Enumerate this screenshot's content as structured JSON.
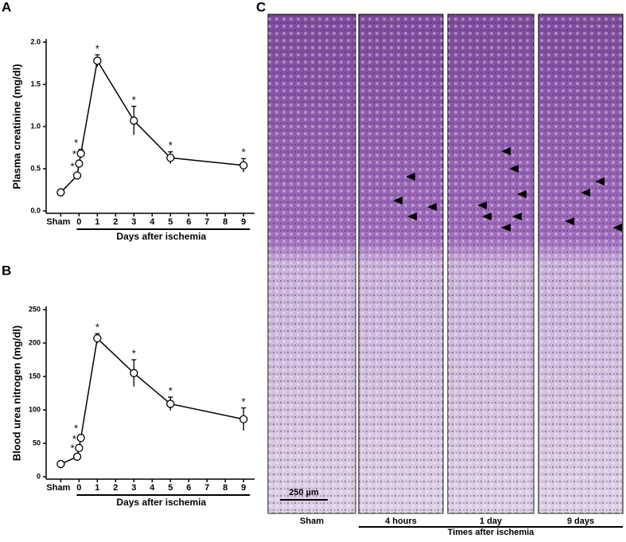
{
  "panel_labels": [
    "A",
    "B",
    "C"
  ],
  "chart_data": [
    {
      "type": "line",
      "ylabel": "Plasma creatinine (mg/dl)",
      "xlabel": "Days after ischemia",
      "x": [
        -1,
        -0.1,
        0,
        0.1,
        1,
        3,
        5,
        9
      ],
      "values": [
        0.22,
        0.42,
        0.56,
        0.68,
        1.78,
        1.07,
        0.63,
        0.54
      ],
      "errors": [
        0.03,
        0.03,
        0.04,
        0.05,
        0.07,
        0.17,
        0.07,
        0.08
      ],
      "significance": [
        null,
        "*",
        "*",
        "*",
        "*",
        "*",
        "*",
        "*"
      ],
      "color": "#000000",
      "xlim": [
        -1.8,
        9.6
      ],
      "ylim": [
        0,
        2
      ],
      "xticks": [
        {
          "value": -1,
          "label": "Sham"
        },
        0,
        1,
        2,
        3,
        4,
        5,
        6,
        7,
        8,
        9
      ],
      "yticks": [
        {
          "value": 0,
          "label": "0.0"
        },
        {
          "value": 0.5,
          "label": "0.5"
        },
        {
          "value": 1,
          "label": "1.0"
        },
        {
          "value": 1.5,
          "label": "1.5"
        },
        {
          "value": 2,
          "label": "2.0"
        }
      ]
    },
    {
      "type": "line",
      "ylabel": "Blood urea nitrogen (mg/dl)",
      "xlabel": "Days after ischemia",
      "x": [
        -1,
        -0.1,
        0,
        0.1,
        1,
        3,
        5,
        9
      ],
      "values": [
        19,
        30,
        43,
        58,
        207,
        155,
        109,
        86
      ],
      "errors": [
        2,
        3,
        4,
        5,
        7,
        20,
        10,
        17
      ],
      "significance": [
        null,
        "*",
        "*",
        "*",
        "*",
        "*",
        "*",
        "*"
      ],
      "color": "#000000",
      "xlim": [
        -1.8,
        9.6
      ],
      "ylim": [
        0,
        250
      ],
      "xticks": [
        {
          "value": -1,
          "label": "Sham"
        },
        0,
        1,
        2,
        3,
        4,
        5,
        6,
        7,
        8,
        9
      ],
      "yticks": [
        0,
        50,
        100,
        150,
        200,
        250
      ]
    }
  ],
  "micrographs": {
    "labels": [
      "Sham",
      "4 hours",
      "1 day",
      "9 days"
    ],
    "group_label": "Times after ischemia",
    "scale_bar": "250 µm"
  }
}
